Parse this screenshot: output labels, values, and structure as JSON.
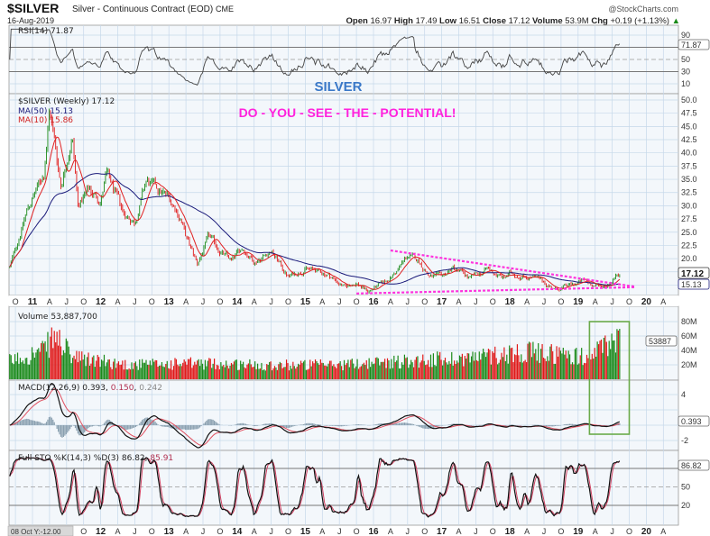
{
  "header": {
    "symbol": "$SILVER",
    "name": "Silver - Continuous Contract (EOD)",
    "exchange": "CME",
    "date": "16-Aug-2019",
    "watermark": "@StockCharts.com",
    "open_label": "Open",
    "open": "16.97",
    "high_label": "High",
    "high": "17.49",
    "low_label": "Low",
    "low": "16.51",
    "close_label": "Close",
    "close": "17.12",
    "volume_label": "Volume",
    "volume": "53.9M",
    "chg_label": "Chg",
    "chg": "+0.19 (+1.13%)",
    "chg_arrow": "▲"
  },
  "annotations": {
    "silver": "SILVER",
    "potential": "DO - YOU - SEE - THE - POTENTIAL!",
    "text_color_silver": "#3a78c8",
    "text_color_potential": "#ff22dd",
    "trendline_color": "#ff33dd",
    "box_color": "#6aaa4a",
    "upper_trendline": [
      [
        "2016-04",
        21.55
      ],
      [
        "2019-11",
        14.7
      ]
    ],
    "lower_trendline": [
      [
        "2015-10",
        13.4
      ],
      [
        "2019-11",
        14.6
      ]
    ],
    "highlight_box": {
      "from": "2019-03",
      "to": "2019-10"
    }
  },
  "panels": {
    "rsi": {
      "label": "RSI(14) 71.87",
      "value": "71.87",
      "ticks": [
        "90",
        "50",
        "30",
        "10"
      ]
    },
    "price": {
      "label": "$SILVER (Weekly) 17.12",
      "ma50_label": "MA(50) 15.13",
      "ma10_label": "MA(10) 15.86",
      "ma50_color": "#1a1a7a",
      "ma10_color": "#e02020",
      "last": "17.12",
      "ma50_last": "15.13",
      "ticks": [
        "50.0",
        "47.5",
        "45.0",
        "42.5",
        "40.0",
        "37.5",
        "35.0",
        "32.5",
        "30.0",
        "27.5",
        "25.0",
        "22.5",
        "20.0"
      ]
    },
    "volume": {
      "label": "Volume 53,887,700",
      "last": "53887",
      "ticks": [
        "80M",
        "60M",
        "40M",
        "20M"
      ]
    },
    "macd": {
      "label": "MACD(12,26,9)",
      "v1": "0.393",
      "v2": "0.150",
      "v3": "0.242",
      "last": "0.393",
      "ticks": [
        "4",
        "-2"
      ]
    },
    "sto": {
      "label": "Full STO %K(14,3) %D(3)",
      "k": "86.82",
      "d": "85.91",
      "last": "86.82",
      "ticks": [
        "50",
        "20"
      ]
    }
  },
  "footer": {
    "readout": "08 Oct Y:-12.00"
  },
  "chart_data": {
    "type": "bar",
    "subtype": "ohlc-weekly",
    "x_ticks": [
      [
        "2010-10",
        "O"
      ],
      [
        "2011-01",
        "11"
      ],
      [
        "2011-04",
        "A"
      ],
      [
        "2011-07",
        "J"
      ],
      [
        "2011-10",
        "O"
      ],
      [
        "2012-01",
        "12"
      ],
      [
        "2012-04",
        "A"
      ],
      [
        "2012-07",
        "J"
      ],
      [
        "2012-10",
        "O"
      ],
      [
        "2013-01",
        "13"
      ],
      [
        "2013-04",
        "A"
      ],
      [
        "2013-07",
        "J"
      ],
      [
        "2013-10",
        "O"
      ],
      [
        "2014-01",
        "14"
      ],
      [
        "2014-04",
        "A"
      ],
      [
        "2014-07",
        "J"
      ],
      [
        "2014-10",
        "O"
      ],
      [
        "2015-01",
        "15"
      ],
      [
        "2015-04",
        "A"
      ],
      [
        "2015-07",
        "J"
      ],
      [
        "2015-10",
        "O"
      ],
      [
        "2016-01",
        "16"
      ],
      [
        "2016-04",
        "A"
      ],
      [
        "2016-07",
        "J"
      ],
      [
        "2016-10",
        "O"
      ],
      [
        "2017-01",
        "17"
      ],
      [
        "2017-04",
        "A"
      ],
      [
        "2017-07",
        "J"
      ],
      [
        "2017-10",
        "O"
      ],
      [
        "2018-01",
        "18"
      ],
      [
        "2018-04",
        "A"
      ],
      [
        "2018-07",
        "J"
      ],
      [
        "2018-10",
        "O"
      ],
      [
        "2019-01",
        "19"
      ],
      [
        "2019-04",
        "A"
      ],
      [
        "2019-07",
        "J"
      ],
      [
        "2019-10",
        "O"
      ],
      [
        "2020-01",
        "20"
      ],
      [
        "2020-04",
        "A"
      ]
    ],
    "price_ylim": [
      13,
      51
    ],
    "up_color": "#1a8a1a",
    "down_color": "#e01818",
    "price_points": [
      [
        "2010-09",
        18.3
      ],
      [
        "2010-12",
        29
      ],
      [
        "2011-03",
        36
      ],
      [
        "2011-04",
        48.5
      ],
      [
        "2011-06",
        34
      ],
      [
        "2011-08",
        43.5
      ],
      [
        "2011-09",
        30
      ],
      [
        "2011-11",
        33
      ],
      [
        "2012-01",
        31
      ],
      [
        "2012-02",
        36
      ],
      [
        "2012-05",
        28.5
      ],
      [
        "2012-07",
        27
      ],
      [
        "2012-09",
        34.5
      ],
      [
        "2012-11",
        33
      ],
      [
        "2013-01",
        31.5
      ],
      [
        "2013-03",
        28
      ],
      [
        "2013-04",
        24
      ],
      [
        "2013-06",
        19
      ],
      [
        "2013-08",
        24
      ],
      [
        "2013-10",
        21.5
      ],
      [
        "2013-12",
        19.5
      ],
      [
        "2014-02",
        22
      ],
      [
        "2014-04",
        19.5
      ],
      [
        "2014-07",
        21.5
      ],
      [
        "2014-10",
        16.5
      ],
      [
        "2015-01",
        18.2
      ],
      [
        "2015-05",
        17
      ],
      [
        "2015-08",
        14.5
      ],
      [
        "2015-10",
        15.5
      ],
      [
        "2015-12",
        13.8
      ],
      [
        "2016-03",
        15.5
      ],
      [
        "2016-05",
        17.5
      ],
      [
        "2016-07",
        20.5
      ],
      [
        "2016-09",
        19.5
      ],
      [
        "2016-11",
        16.5
      ],
      [
        "2017-01",
        16.5
      ],
      [
        "2017-03",
        18.3
      ],
      [
        "2017-06",
        16.2
      ],
      [
        "2017-08",
        17.3
      ],
      [
        "2017-09",
        18
      ],
      [
        "2017-12",
        16.2
      ],
      [
        "2018-01",
        17.2
      ],
      [
        "2018-05",
        16.5
      ],
      [
        "2018-07",
        15.5
      ],
      [
        "2018-09",
        14.2
      ],
      [
        "2018-12",
        15
      ],
      [
        "2019-02",
        15.8
      ],
      [
        "2019-05",
        14.6
      ],
      [
        "2019-06",
        15
      ],
      [
        "2019-08",
        17.12
      ]
    ],
    "volume_points_millions": [
      [
        "2010-09",
        25
      ],
      [
        "2011-03",
        40
      ],
      [
        "2011-05",
        60
      ],
      [
        "2011-08",
        30
      ],
      [
        "2012-06",
        20
      ],
      [
        "2013-06",
        22
      ],
      [
        "2014-06",
        20
      ],
      [
        "2015-06",
        20
      ],
      [
        "2016-06",
        25
      ],
      [
        "2017-06",
        30
      ],
      [
        "2018-03",
        38
      ],
      [
        "2018-10",
        35
      ],
      [
        "2019-03",
        30
      ],
      [
        "2019-07",
        55
      ],
      [
        "2019-08",
        54
      ]
    ],
    "volume_ylim_millions": [
      0,
      90
    ],
    "rsi_levels": [
      30,
      50,
      70
    ],
    "sto_levels": [
      20,
      50,
      80
    ]
  }
}
